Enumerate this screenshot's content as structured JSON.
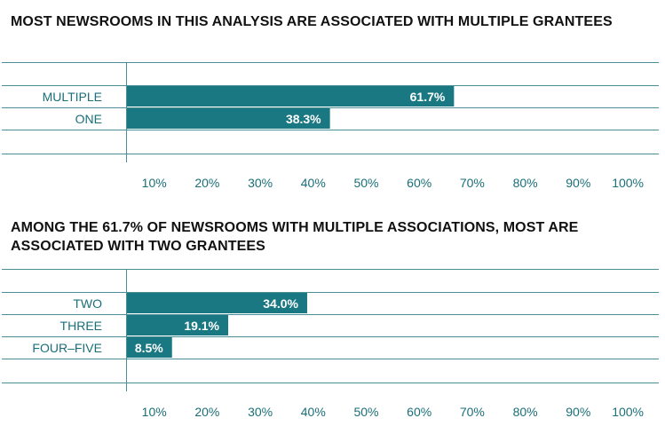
{
  "colors": {
    "bar": "#1a7883",
    "axis": "#1a6f78",
    "text": "#111111"
  },
  "chart_data": [
    {
      "type": "bar",
      "orientation": "horizontal",
      "title": "MOST NEWSROOMS IN THIS ANALYSIS ARE ASSOCIATED WITH MULTIPLE GRANTEES",
      "categories": [
        "MULTIPLE",
        "ONE"
      ],
      "values": [
        61.7,
        38.3
      ],
      "value_labels": [
        "61.7%",
        "38.3%"
      ],
      "xlim": [
        0,
        100
      ],
      "x_ticks": [
        "10%",
        "20%",
        "30%",
        "40%",
        "50%",
        "60%",
        "70%",
        "80%",
        "90%",
        "100%"
      ],
      "grid": "horizontal"
    },
    {
      "type": "bar",
      "orientation": "horizontal",
      "title": "AMONG THE 61.7% OF NEWSROOMS WITH MULTIPLE ASSOCIATIONS, MOST ARE ASSOCIATED WITH TWO GRANTEES",
      "categories": [
        "TWO",
        "THREE",
        "FOUR–FIVE"
      ],
      "values": [
        34.0,
        19.1,
        8.5
      ],
      "value_labels": [
        "34.0%",
        "19.1%",
        "8.5%"
      ],
      "xlim": [
        0,
        100
      ],
      "x_ticks": [
        "10%",
        "20%",
        "30%",
        "40%",
        "50%",
        "60%",
        "70%",
        "80%",
        "90%",
        "100%"
      ],
      "grid": "horizontal"
    }
  ]
}
